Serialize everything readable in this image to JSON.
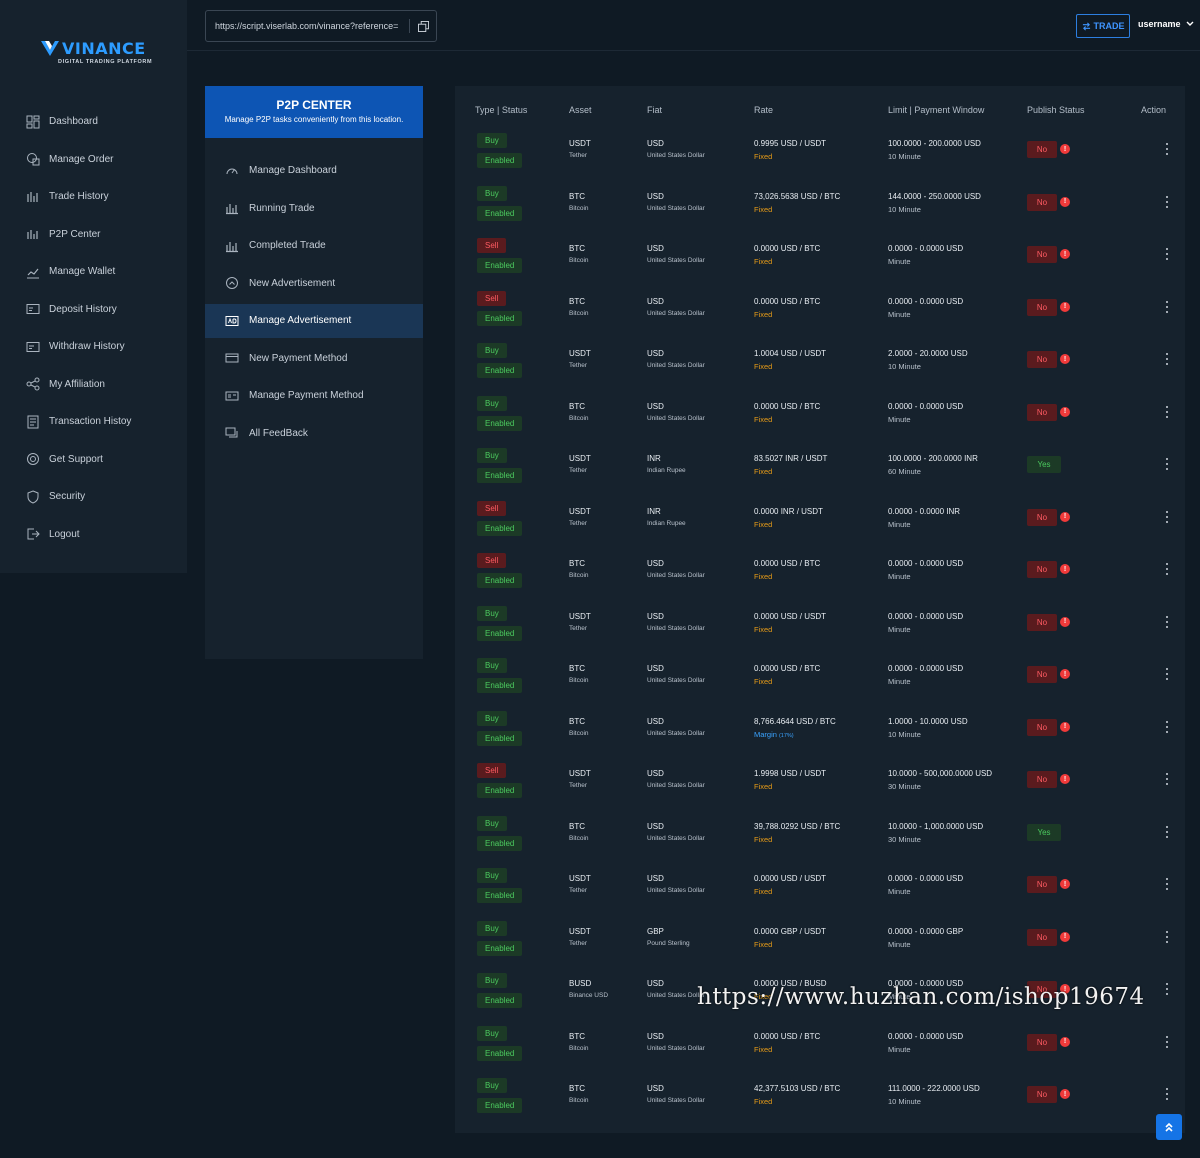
{
  "brand": {
    "name": "VINANCE",
    "tagline": "DIGITAL TRADING PLATFORM",
    "accent": "#2d9cff"
  },
  "topbar": {
    "url": "https://script.viserlab.com/vinance?reference=",
    "trade_label": "TRADE",
    "username": "username"
  },
  "sidebar": {
    "items": [
      {
        "label": "Dashboard",
        "icon": "dashboard-icon"
      },
      {
        "label": "Manage Order",
        "icon": "order-icon"
      },
      {
        "label": "Trade History",
        "icon": "trade-history-icon"
      },
      {
        "label": "P2P Center",
        "icon": "p2p-icon"
      },
      {
        "label": "Manage Wallet",
        "icon": "wallet-icon"
      },
      {
        "label": "Deposit History",
        "icon": "deposit-icon"
      },
      {
        "label": "Withdraw History",
        "icon": "withdraw-icon"
      },
      {
        "label": "My Affiliation",
        "icon": "affiliation-icon"
      },
      {
        "label": "Transaction Histoy",
        "icon": "transaction-icon"
      },
      {
        "label": "Get Support",
        "icon": "support-icon"
      },
      {
        "label": "Security",
        "icon": "security-icon"
      },
      {
        "label": "Logout",
        "icon": "logout-icon"
      }
    ]
  },
  "p2p": {
    "title": "P2P CENTER",
    "subtitle": "Manage P2P tasks conveniently from this location.",
    "items": [
      {
        "label": "Manage Dashboard",
        "icon": "gauge-icon"
      },
      {
        "label": "Running Trade",
        "icon": "bar-chart-icon"
      },
      {
        "label": "Completed Trade",
        "icon": "bar-chart-icon"
      },
      {
        "label": "New Advertisement",
        "icon": "circle-plus-icon"
      },
      {
        "label": "Manage Advertisement",
        "icon": "ad-icon",
        "active": true
      },
      {
        "label": "New Payment Method",
        "icon": "card-icon"
      },
      {
        "label": "Manage Payment Method",
        "icon": "card-list-icon"
      },
      {
        "label": "All FeedBack",
        "icon": "chat-icon"
      }
    ]
  },
  "table": {
    "headers": {
      "type_status": "Type | Status",
      "asset": "Asset",
      "fiat": "Fiat",
      "rate": "Rate",
      "limit": "Limit | Payment Window",
      "publish": "Publish Status",
      "action": "Action"
    },
    "rows": [
      {
        "type": "Buy",
        "status": "Enabled",
        "asset": "USDT",
        "asset_name": "Tether",
        "fiat": "USD",
        "fiat_name": "United States Dollar",
        "rate": "0.9995 USD / USDT",
        "rate_type": "Fixed",
        "limit": "100.0000 - 200.0000 USD",
        "window": "10 Minute",
        "publish": "No"
      },
      {
        "type": "Buy",
        "status": "Enabled",
        "asset": "BTC",
        "asset_name": "Bitcoin",
        "fiat": "USD",
        "fiat_name": "United States Dollar",
        "rate": "73,026.5638 USD / BTC",
        "rate_type": "Fixed",
        "limit": "144.0000 - 250.0000 USD",
        "window": "10 Minute",
        "publish": "No"
      },
      {
        "type": "Sell",
        "status": "Enabled",
        "asset": "BTC",
        "asset_name": "Bitcoin",
        "fiat": "USD",
        "fiat_name": "United States Dollar",
        "rate": "0.0000 USD / BTC",
        "rate_type": "Fixed",
        "limit": "0.0000 - 0.0000 USD",
        "window": "Minute",
        "publish": "No"
      },
      {
        "type": "Sell",
        "status": "Enabled",
        "asset": "BTC",
        "asset_name": "Bitcoin",
        "fiat": "USD",
        "fiat_name": "United States Dollar",
        "rate": "0.0000 USD / BTC",
        "rate_type": "Fixed",
        "limit": "0.0000 - 0.0000 USD",
        "window": "Minute",
        "publish": "No"
      },
      {
        "type": "Buy",
        "status": "Enabled",
        "asset": "USDT",
        "asset_name": "Tether",
        "fiat": "USD",
        "fiat_name": "United States Dollar",
        "rate": "1.0004 USD / USDT",
        "rate_type": "Fixed",
        "limit": "2.0000 - 20.0000 USD",
        "window": "10 Minute",
        "publish": "No"
      },
      {
        "type": "Buy",
        "status": "Enabled",
        "asset": "BTC",
        "asset_name": "Bitcoin",
        "fiat": "USD",
        "fiat_name": "United States Dollar",
        "rate": "0.0000 USD / BTC",
        "rate_type": "Fixed",
        "limit": "0.0000 - 0.0000 USD",
        "window": "Minute",
        "publish": "No"
      },
      {
        "type": "Buy",
        "status": "Enabled",
        "asset": "USDT",
        "asset_name": "Tether",
        "fiat": "INR",
        "fiat_name": "Indian Rupee",
        "rate": "83.5027 INR / USDT",
        "rate_type": "Fixed",
        "limit": "100.0000 - 200.0000 INR",
        "window": "60 Minute",
        "publish": "Yes"
      },
      {
        "type": "Sell",
        "status": "Enabled",
        "asset": "USDT",
        "asset_name": "Tether",
        "fiat": "INR",
        "fiat_name": "Indian Rupee",
        "rate": "0.0000 INR / USDT",
        "rate_type": "Fixed",
        "limit": "0.0000 - 0.0000 INR",
        "window": "Minute",
        "publish": "No"
      },
      {
        "type": "Sell",
        "status": "Enabled",
        "asset": "BTC",
        "asset_name": "Bitcoin",
        "fiat": "USD",
        "fiat_name": "United States Dollar",
        "rate": "0.0000 USD / BTC",
        "rate_type": "Fixed",
        "limit": "0.0000 - 0.0000 USD",
        "window": "Minute",
        "publish": "No"
      },
      {
        "type": "Buy",
        "status": "Enabled",
        "asset": "USDT",
        "asset_name": "Tether",
        "fiat": "USD",
        "fiat_name": "United States Dollar",
        "rate": "0.0000 USD / USDT",
        "rate_type": "Fixed",
        "limit": "0.0000 - 0.0000 USD",
        "window": "Minute",
        "publish": "No"
      },
      {
        "type": "Buy",
        "status": "Enabled",
        "asset": "BTC",
        "asset_name": "Bitcoin",
        "fiat": "USD",
        "fiat_name": "United States Dollar",
        "rate": "0.0000 USD / BTC",
        "rate_type": "Fixed",
        "limit": "0.0000 - 0.0000 USD",
        "window": "Minute",
        "publish": "No"
      },
      {
        "type": "Buy",
        "status": "Enabled",
        "asset": "BTC",
        "asset_name": "Bitcoin",
        "fiat": "USD",
        "fiat_name": "United States Dollar",
        "rate": "8,766.4644 USD / BTC",
        "rate_type": "Margin",
        "rate_margin": "(17%)",
        "limit": "1.0000 - 10.0000 USD",
        "window": "10 Minute",
        "publish": "No"
      },
      {
        "type": "Sell",
        "status": "Enabled",
        "asset": "USDT",
        "asset_name": "Tether",
        "fiat": "USD",
        "fiat_name": "United States Dollar",
        "rate": "1.9998 USD / USDT",
        "rate_type": "Fixed",
        "limit": "10.0000 - 500,000.0000 USD",
        "window": "30 Minute",
        "publish": "No"
      },
      {
        "type": "Buy",
        "status": "Enabled",
        "asset": "BTC",
        "asset_name": "Bitcoin",
        "fiat": "USD",
        "fiat_name": "United States Dollar",
        "rate": "39,788.0292 USD / BTC",
        "rate_type": "Fixed",
        "limit": "10.0000 - 1,000.0000 USD",
        "window": "30 Minute",
        "publish": "Yes"
      },
      {
        "type": "Buy",
        "status": "Enabled",
        "asset": "USDT",
        "asset_name": "Tether",
        "fiat": "USD",
        "fiat_name": "United States Dollar",
        "rate": "0.0000 USD / USDT",
        "rate_type": "Fixed",
        "limit": "0.0000 - 0.0000 USD",
        "window": "Minute",
        "publish": "No"
      },
      {
        "type": "Buy",
        "status": "Enabled",
        "asset": "USDT",
        "asset_name": "Tether",
        "fiat": "GBP",
        "fiat_name": "Pound Sterling",
        "rate": "0.0000 GBP / USDT",
        "rate_type": "Fixed",
        "limit": "0.0000 - 0.0000 GBP",
        "window": "Minute",
        "publish": "No"
      },
      {
        "type": "Buy",
        "status": "Enabled",
        "asset": "BUSD",
        "asset_name": "Binance USD",
        "fiat": "USD",
        "fiat_name": "United States Dollar",
        "rate": "0.0000 USD / BUSD",
        "rate_type": "Fixed",
        "limit": "0.0000 - 0.0000 USD",
        "window": "Minute",
        "publish": "No"
      },
      {
        "type": "Buy",
        "status": "Enabled",
        "asset": "BTC",
        "asset_name": "Bitcoin",
        "fiat": "USD",
        "fiat_name": "United States Dollar",
        "rate": "0.0000 USD / BTC",
        "rate_type": "Fixed",
        "limit": "0.0000 - 0.0000 USD",
        "window": "Minute",
        "publish": "No"
      },
      {
        "type": "Buy",
        "status": "Enabled",
        "asset": "BTC",
        "asset_name": "Bitcoin",
        "fiat": "USD",
        "fiat_name": "United States Dollar",
        "rate": "42,377.5103 USD / BTC",
        "rate_type": "Fixed",
        "limit": "111.0000 - 222.0000 USD",
        "window": "10 Minute",
        "publish": "No"
      }
    ]
  },
  "watermark": "https://www.huzhan.com/ishop19674",
  "colors": {
    "buy": "#4ccb5f",
    "sell": "#ff5b62",
    "fixed": "#e59b18",
    "margin": "#3aa3ff",
    "primary": "#0d55b4"
  }
}
